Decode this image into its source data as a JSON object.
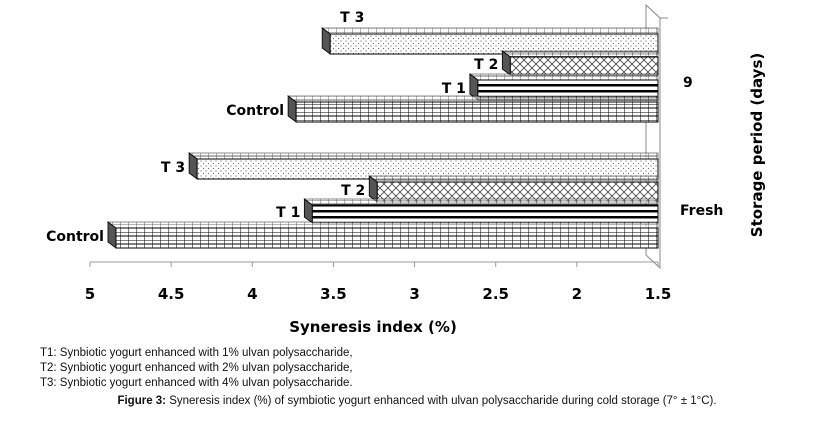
{
  "chart_data": {
    "type": "bar",
    "orientation": "horizontal-3d",
    "xlabel": "Syneresis index (%)",
    "ylabel": "Storage period (days)",
    "xlim": [
      5,
      1.5
    ],
    "x_reversed": true,
    "xticks": [
      "5",
      "4.5",
      "4",
      "3.5",
      "3",
      "2.5",
      "2",
      "1.5"
    ],
    "categories": [
      "Fresh",
      "9"
    ],
    "series": [
      {
        "name": "Control",
        "values": [
          4.84,
          3.73
        ],
        "pattern": "grid"
      },
      {
        "name": "T 1",
        "values": [
          3.63,
          2.61
        ],
        "pattern": "horizontal-stripes"
      },
      {
        "name": "T 2",
        "values": [
          3.23,
          2.41
        ],
        "pattern": "crosshatch"
      },
      {
        "name": "T 3",
        "values": [
          4.34,
          3.52
        ],
        "pattern": "dots"
      }
    ],
    "grid": false,
    "legend": "none"
  },
  "notes": [
    "T1: Synbiotic yogurt enhanced with 1% ulvan polysaccharide,",
    "T2: Synbiotic yogurt enhanced with 2% ulvan polysaccharide,",
    "T3: Synbiotic yogurt enhanced with 4% ulvan polysaccharide."
  ],
  "caption": {
    "label": "Figure 3:",
    "text": " Syneresis index (%) of symbiotic yogurt enhanced with ulvan polysaccharide during cold storage (7° ± 1°C)."
  }
}
